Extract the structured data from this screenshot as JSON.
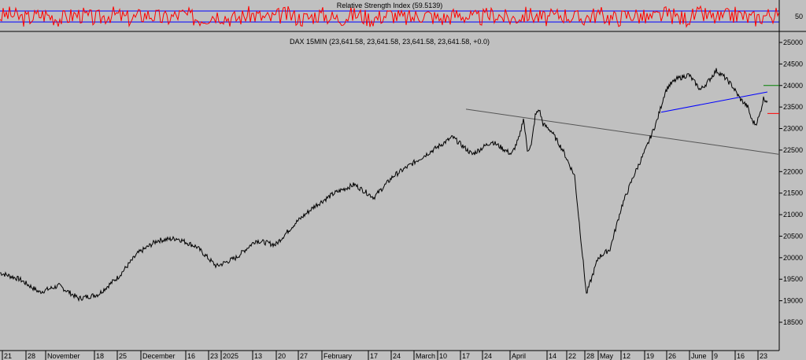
{
  "chart_data": [
    {
      "type": "line",
      "title": "Relative Strength Index (59.5139)",
      "ylabel": "",
      "yticks": [
        50
      ],
      "ylim": [
        0,
        100
      ],
      "levels": [
        30,
        70
      ],
      "colors": {
        "line": "#ff0000",
        "levels": "#0000ff"
      },
      "series_note": ""
    },
    {
      "type": "line",
      "title": "DAX 15MIN (23,641.58, 23,641.58, 23,641.58, 23,641.58, +0.0)",
      "ylim": [
        18000,
        25200
      ],
      "yticks": [
        18500,
        19000,
        19500,
        20000,
        20500,
        21000,
        21500,
        22000,
        22500,
        23000,
        23500,
        24000,
        24500,
        25000
      ],
      "xlabels": [
        "21",
        "28",
        "November",
        "18",
        "25",
        "December",
        "16",
        "23",
        "2025",
        "13",
        "20",
        "27",
        "February",
        "17",
        "24",
        "March",
        "10",
        "17",
        "24",
        "April",
        "14",
        "22",
        "28",
        "May",
        "12",
        "19",
        "26",
        "June",
        "9",
        "16",
        "23"
      ],
      "x": [
        0,
        25,
        50,
        75,
        100,
        125,
        150,
        175,
        200,
        225,
        250,
        275,
        300,
        325,
        350,
        375,
        400,
        425,
        450,
        475,
        500,
        525,
        550,
        575,
        600,
        625,
        650,
        660,
        665,
        670,
        675,
        680,
        685,
        690,
        700,
        715,
        730,
        745,
        760,
        775,
        790,
        805,
        820,
        835,
        845,
        850,
        860,
        875,
        890,
        900,
        910,
        920,
        930,
        940,
        950,
        955,
        960,
        965,
        970,
        975
      ],
      "y": [
        19650,
        19500,
        19200,
        19350,
        19050,
        19150,
        19550,
        20100,
        20400,
        20450,
        20250,
        19800,
        20000,
        20400,
        20300,
        20800,
        21200,
        21500,
        21700,
        21400,
        21900,
        22200,
        22500,
        22800,
        22400,
        22700,
        22400,
        22800,
        23250,
        22500,
        22600,
        23300,
        23450,
        23100,
        22950,
        22500,
        21900,
        19150,
        20000,
        20200,
        21200,
        21900,
        22500,
        23200,
        23850,
        24000,
        24150,
        24250,
        23900,
        24100,
        24350,
        24200,
        24000,
        23700,
        23500,
        23200,
        23100,
        23300,
        23700,
        23641.58
      ],
      "colors": {
        "line": "#000000",
        "trend1": "#555555",
        "trend2": "#0000ff",
        "marker_red": "#ff0000",
        "marker_green": "#008000"
      }
    }
  ]
}
